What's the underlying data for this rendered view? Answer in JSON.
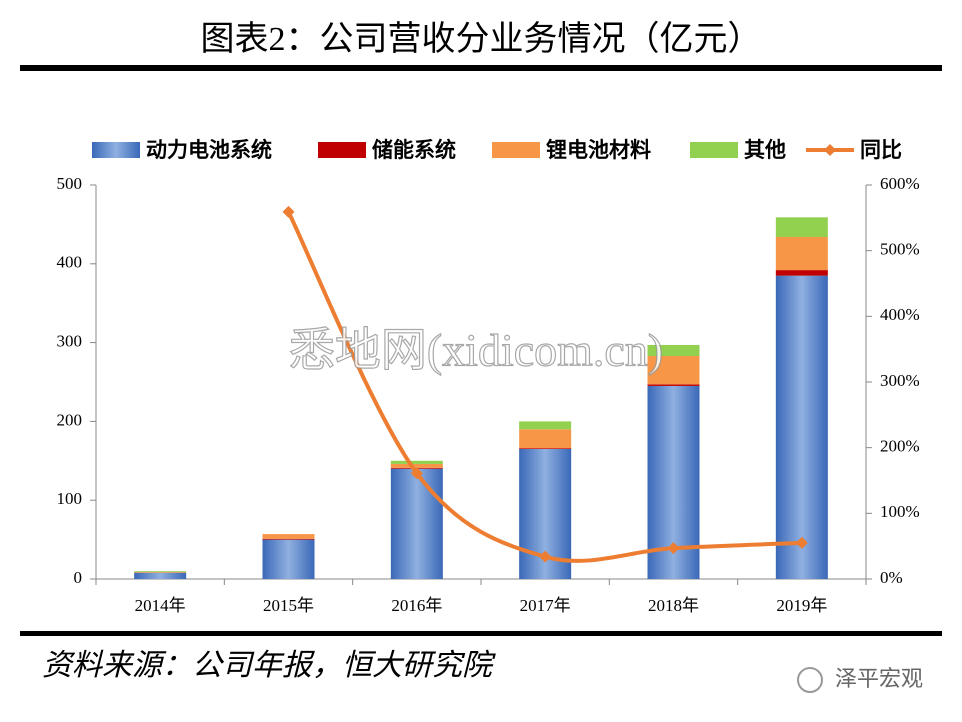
{
  "chart_data": {
    "type": "bar",
    "stacked": true,
    "title": "图表2：公司营收分业务情况（亿元）",
    "source": "资料来源：公司年报，恒大研究院",
    "watermark": "悉地网(xidicom.cn)",
    "logo_text": "泽平宏观",
    "categories": [
      "2014年",
      "2015年",
      "2016年",
      "2017年",
      "2018年",
      "2019年"
    ],
    "series": [
      {
        "name": "动力电池系统",
        "color": "#4a7cc9",
        "values": [
          8,
          50,
          140,
          165,
          245,
          385
        ]
      },
      {
        "name": "储能系统",
        "color": "#c00000",
        "values": [
          0,
          1,
          1,
          1,
          2,
          7
        ]
      },
      {
        "name": "锂电池材料",
        "color": "#f79646",
        "values": [
          1,
          6,
          5,
          24,
          36,
          42
        ]
      },
      {
        "name": "其他",
        "color": "#92d050",
        "values": [
          1,
          0,
          4,
          10,
          14,
          25
        ]
      },
      {
        "name": "同比",
        "color": "#ed7d31",
        "type": "line",
        "axis": "y2",
        "values": [
          null,
          559,
          161,
          34,
          47,
          55
        ]
      }
    ],
    "ylim": [
      0,
      500
    ],
    "yticks": [
      0,
      100,
      200,
      300,
      400,
      500
    ],
    "y2lim": [
      0,
      600
    ],
    "y2ticks": [
      {
        "value": 0,
        "label": "0%"
      },
      {
        "value": 100,
        "label": "100%"
      },
      {
        "value": 200,
        "label": "200%"
      },
      {
        "value": 300,
        "label": "300%"
      },
      {
        "value": 400,
        "label": "400%"
      },
      {
        "value": 500,
        "label": "500%"
      },
      {
        "value": 600,
        "label": "600%"
      }
    ],
    "grid": false
  }
}
